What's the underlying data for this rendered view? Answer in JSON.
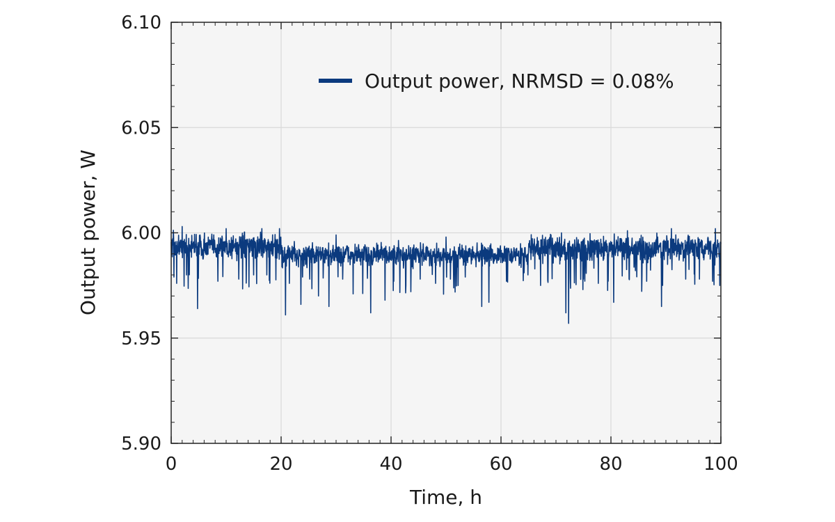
{
  "chart_data": {
    "type": "line",
    "title": "",
    "xlabel": "Time, h",
    "ylabel": "Output power, W",
    "xlim": [
      0,
      100
    ],
    "ylim": [
      5.9,
      6.1
    ],
    "x_ticks": [
      0,
      20,
      40,
      60,
      80,
      100
    ],
    "x_tick_labels": [
      "0",
      "20",
      "40",
      "60",
      "80",
      "100"
    ],
    "y_ticks": [
      5.9,
      5.95,
      6.0,
      6.05,
      6.1
    ],
    "y_tick_labels": [
      "5.90",
      "5.95",
      "6.00",
      "6.05",
      "6.10"
    ],
    "grid": true,
    "legend_position": "upper-right",
    "series": [
      {
        "name": "Output power, NRMSD = 0.08%",
        "color": "#0b3a7e",
        "sampling_interval_h": 0.05,
        "segments": [
          {
            "x_range": [
              0,
              20
            ],
            "y_mean": 5.994,
            "y_band": [
              5.985,
              6.002
            ]
          },
          {
            "x_range": [
              20,
              65
            ],
            "y_mean": 5.991,
            "y_band": [
              5.982,
              5.997
            ]
          },
          {
            "x_range": [
              65,
              100
            ],
            "y_mean": 5.993,
            "y_band": [
              5.984,
              6.001
            ]
          }
        ],
        "dips": [
          {
            "x": 0.5,
            "y": 5.979
          },
          {
            "x": 1.0,
            "y": 5.976
          },
          {
            "x": 2.8,
            "y": 5.98
          },
          {
            "x": 4.8,
            "y": 5.964
          },
          {
            "x": 8.5,
            "y": 5.977
          },
          {
            "x": 12.3,
            "y": 5.978
          },
          {
            "x": 15.0,
            "y": 5.98
          },
          {
            "x": 17.4,
            "y": 5.98
          },
          {
            "x": 20.8,
            "y": 5.961
          },
          {
            "x": 21.5,
            "y": 5.976
          },
          {
            "x": 23.6,
            "y": 5.966
          },
          {
            "x": 25.2,
            "y": 5.978
          },
          {
            "x": 26.8,
            "y": 5.97
          },
          {
            "x": 28.7,
            "y": 5.965
          },
          {
            "x": 31.2,
            "y": 5.978
          },
          {
            "x": 33.1,
            "y": 5.971
          },
          {
            "x": 36.3,
            "y": 5.962
          },
          {
            "x": 38.9,
            "y": 5.968
          },
          {
            "x": 40.5,
            "y": 5.977
          },
          {
            "x": 42.7,
            "y": 5.975
          },
          {
            "x": 45.3,
            "y": 5.978
          },
          {
            "x": 48.1,
            "y": 5.976
          },
          {
            "x": 50.8,
            "y": 5.978
          },
          {
            "x": 53.5,
            "y": 5.979
          },
          {
            "x": 56.5,
            "y": 5.965
          },
          {
            "x": 57.8,
            "y": 5.967
          },
          {
            "x": 61.0,
            "y": 5.977
          },
          {
            "x": 64.9,
            "y": 5.98
          },
          {
            "x": 67.2,
            "y": 5.975
          },
          {
            "x": 71.8,
            "y": 5.962
          },
          {
            "x": 72.3,
            "y": 5.957
          },
          {
            "x": 75.0,
            "y": 5.978
          },
          {
            "x": 77.7,
            "y": 5.976
          },
          {
            "x": 80.5,
            "y": 5.967
          },
          {
            "x": 83.3,
            "y": 5.978
          },
          {
            "x": 86.5,
            "y": 5.977
          },
          {
            "x": 89.2,
            "y": 5.965
          },
          {
            "x": 91.0,
            "y": 5.98
          },
          {
            "x": 93.6,
            "y": 5.978
          },
          {
            "x": 96.1,
            "y": 5.978
          },
          {
            "x": 98.5,
            "y": 5.977
          }
        ],
        "peaks": [
          {
            "x": 2.0,
            "y": 6.003
          },
          {
            "x": 10.0,
            "y": 6.002
          },
          {
            "x": 16.5,
            "y": 6.002
          },
          {
            "x": 19.7,
            "y": 6.002
          },
          {
            "x": 30.0,
            "y": 5.999
          },
          {
            "x": 50.0,
            "y": 5.998
          },
          {
            "x": 71.0,
            "y": 6.0
          },
          {
            "x": 83.0,
            "y": 6.001
          },
          {
            "x": 91.0,
            "y": 6.002
          },
          {
            "x": 99.0,
            "y": 6.002
          }
        ]
      }
    ]
  }
}
